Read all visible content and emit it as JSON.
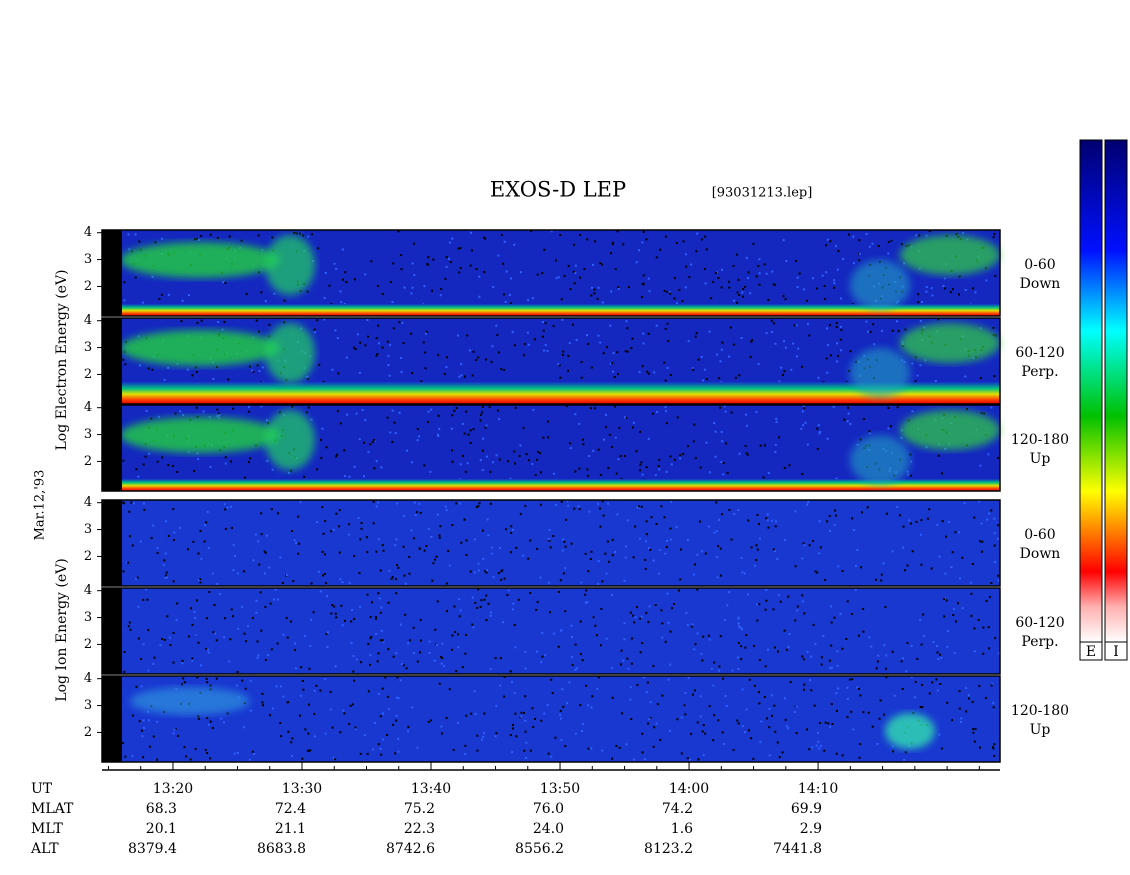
{
  "title": "EXOS-D LEP",
  "file": "[93031213.lep]",
  "date": "Mar.12,'93",
  "colorbars": [
    "E",
    "I"
  ],
  "groups": [
    {
      "name": "electron",
      "ylabel": "Log Electron Energy (eV)",
      "panels": [
        {
          "range": "0-60",
          "direction": "Down"
        },
        {
          "range": "60-120",
          "direction": "Perp."
        },
        {
          "range": "120-180",
          "direction": "Up"
        }
      ]
    },
    {
      "name": "ion",
      "ylabel": "Log Ion Energy (eV)",
      "panels": [
        {
          "range": "0-60",
          "direction": "Down"
        },
        {
          "range": "60-120",
          "direction": "Perp."
        },
        {
          "range": "120-180",
          "direction": "Up"
        }
      ]
    }
  ],
  "ylim": [
    0.9,
    4.1
  ],
  "yticks": [
    4,
    3,
    2
  ],
  "xlim": [
    14.5,
    84.1
  ],
  "xticks": [
    {
      "value": 20,
      "label": "13:20"
    },
    {
      "value": 30,
      "label": "13:30"
    },
    {
      "value": 40,
      "label": "13:40"
    },
    {
      "value": 50,
      "label": "13:50"
    },
    {
      "value": 60,
      "label": "14:00"
    },
    {
      "value": 70,
      "label": "14:10"
    }
  ],
  "minor_xticks": [
    15,
    17.5,
    22.5,
    25,
    27.5,
    32.5,
    35,
    37.5,
    42.5,
    45,
    47.5,
    52.5,
    55,
    57.5,
    62.5,
    65,
    67.5,
    72.5,
    75,
    77.5,
    80,
    82.5
  ],
  "orbit": [
    {
      "name": "UT",
      "values": []
    },
    {
      "name": "MLAT",
      "values": [
        "68.3",
        "72.4",
        "75.2",
        "76.0",
        "74.2",
        "69.9"
      ]
    },
    {
      "name": "MLT",
      "values": [
        "20.1",
        "21.1",
        "22.3",
        "24.0",
        "1.6",
        "2.9"
      ]
    },
    {
      "name": "ALT",
      "values": [
        "8379.4",
        "8683.8",
        "8742.6",
        "8556.2",
        "8123.2",
        "7441.8"
      ]
    }
  ]
}
